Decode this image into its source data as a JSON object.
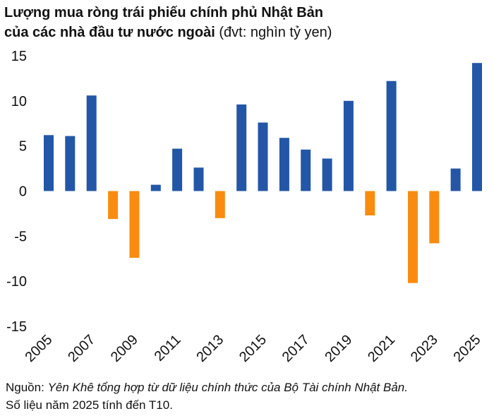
{
  "title": {
    "line1": "Lượng mua ròng trái phiếu chính phủ Nhật Bản",
    "line2": "của các nhà đầu tư nước ngoài",
    "unit": "(đvt: nghìn tỷ yen)"
  },
  "colors": {
    "positive": "#2356a6",
    "negative": "#f98c10"
  },
  "chart_data": {
    "type": "bar",
    "title": "Lượng mua ròng trái phiếu chính phủ Nhật Bản của các nhà đầu tư nước ngoài",
    "ylabel": "",
    "xlabel": "",
    "ylim": [
      -15,
      15
    ],
    "yticks": [
      15,
      10,
      5,
      0,
      -5,
      -10,
      -15
    ],
    "grid": false,
    "categories": [
      "2005",
      "2006",
      "2007",
      "2008",
      "2009",
      "2010",
      "2011",
      "2012",
      "2013",
      "2014",
      "2015",
      "2016",
      "2017",
      "2018",
      "2019",
      "2020",
      "2021",
      "2022",
      "2023",
      "2024",
      "2025"
    ],
    "x_tick_labels": [
      "2005",
      "2007",
      "2009",
      "2011",
      "2013",
      "2015",
      "2017",
      "2019",
      "2021",
      "2023",
      "2025"
    ],
    "values": [
      6.2,
      6.1,
      10.6,
      -3.1,
      -7.4,
      0.7,
      4.7,
      2.6,
      -3.0,
      9.6,
      7.6,
      5.9,
      4.6,
      3.6,
      10.0,
      -2.7,
      12.2,
      -10.2,
      -5.8,
      2.5,
      14.2
    ]
  },
  "source": {
    "label": "Nguồn:",
    "text": "Yên Khê tổng hợp từ dữ liệu chính thức của Bộ Tài chính Nhật Bản.",
    "note": "Số liệu năm 2025 tính đến T10."
  }
}
